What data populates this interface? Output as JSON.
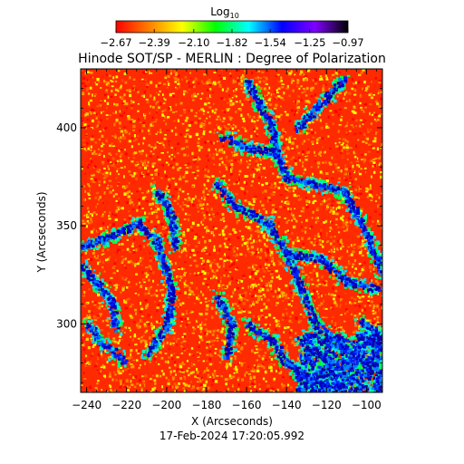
{
  "chart_data": {
    "type": "heatmap",
    "title": "Hinode SOT/SP - MERLIN : Degree of Polarization",
    "xlabel": "X (Arcseconds)",
    "ylabel": "Y (Arcseconds)",
    "xlim": [
      -243,
      -92
    ],
    "ylim": [
      265,
      430
    ],
    "x_ticks": [
      -240,
      -220,
      -200,
      -180,
      -160,
      -140,
      -120,
      -100
    ],
    "x_tick_labels": [
      "−240",
      "−220",
      "−200",
      "−180",
      "−160",
      "−140",
      "−120",
      "−100"
    ],
    "y_ticks": [
      300,
      350,
      400
    ],
    "y_tick_labels": [
      "300",
      "350",
      "400"
    ],
    "colorbar": {
      "label_main": "Log",
      "label_sub": "10",
      "min": -2.67,
      "max": -0.97,
      "ticks": [
        -2.67,
        -2.39,
        -2.1,
        -1.82,
        -1.54,
        -1.25,
        -0.97
      ],
      "tick_labels": [
        "−2.67",
        "−2.39",
        "−2.10",
        "−1.82",
        "−1.54",
        "−1.25",
        "−0.97"
      ],
      "colormap": [
        "#ff0000",
        "#ff7f00",
        "#ffff00",
        "#00ff00",
        "#00ffff",
        "#0000ff",
        "#7f00ff",
        "#000000"
      ]
    },
    "timestamp": "17-Feb-2024 17:20:05.992"
  }
}
